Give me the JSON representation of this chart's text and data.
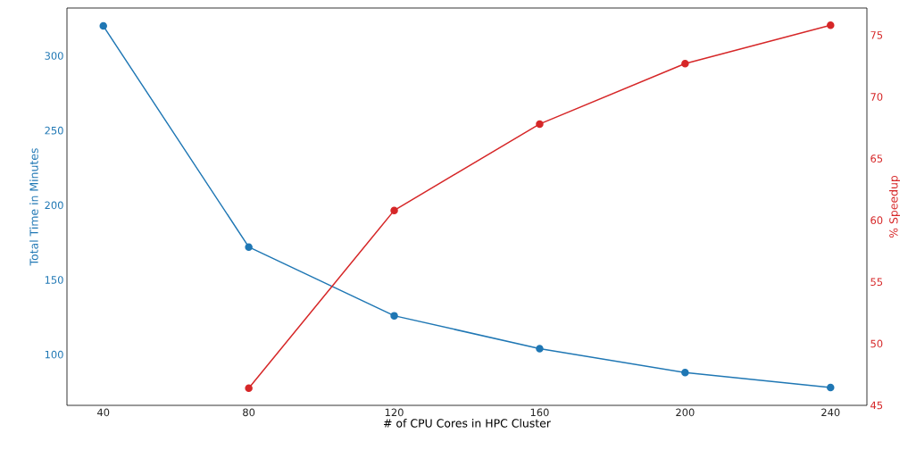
{
  "chart_data": {
    "type": "line",
    "xlabel": "# of CPU Cores in HPC Cluster",
    "ylabel": "Total Time in Minutes",
    "y2label": "% Speedup",
    "x": [
      40,
      80,
      120,
      160,
      200,
      240
    ],
    "series": [
      {
        "color": "#1f77b4",
        "values": [
          320,
          172,
          126,
          104,
          88,
          78
        ]
      },
      {
        "color": "#d62728",
        "axis": "y2",
        "values": [
          null,
          46.4,
          60.8,
          67.8,
          72.7,
          75.8
        ]
      }
    ],
    "xlim": [
      30,
      250
    ],
    "xticks": [
      40,
      80,
      120,
      160,
      200,
      240
    ],
    "ylim": [
      66,
      332
    ],
    "yticks": [
      100,
      150,
      200,
      250,
      300
    ],
    "y2lim": [
      45,
      77.2
    ],
    "y2ticks": [
      45,
      50,
      55,
      60,
      65,
      70,
      75
    ],
    "marker": "circle",
    "line_style": "solid",
    "grid": false
  }
}
